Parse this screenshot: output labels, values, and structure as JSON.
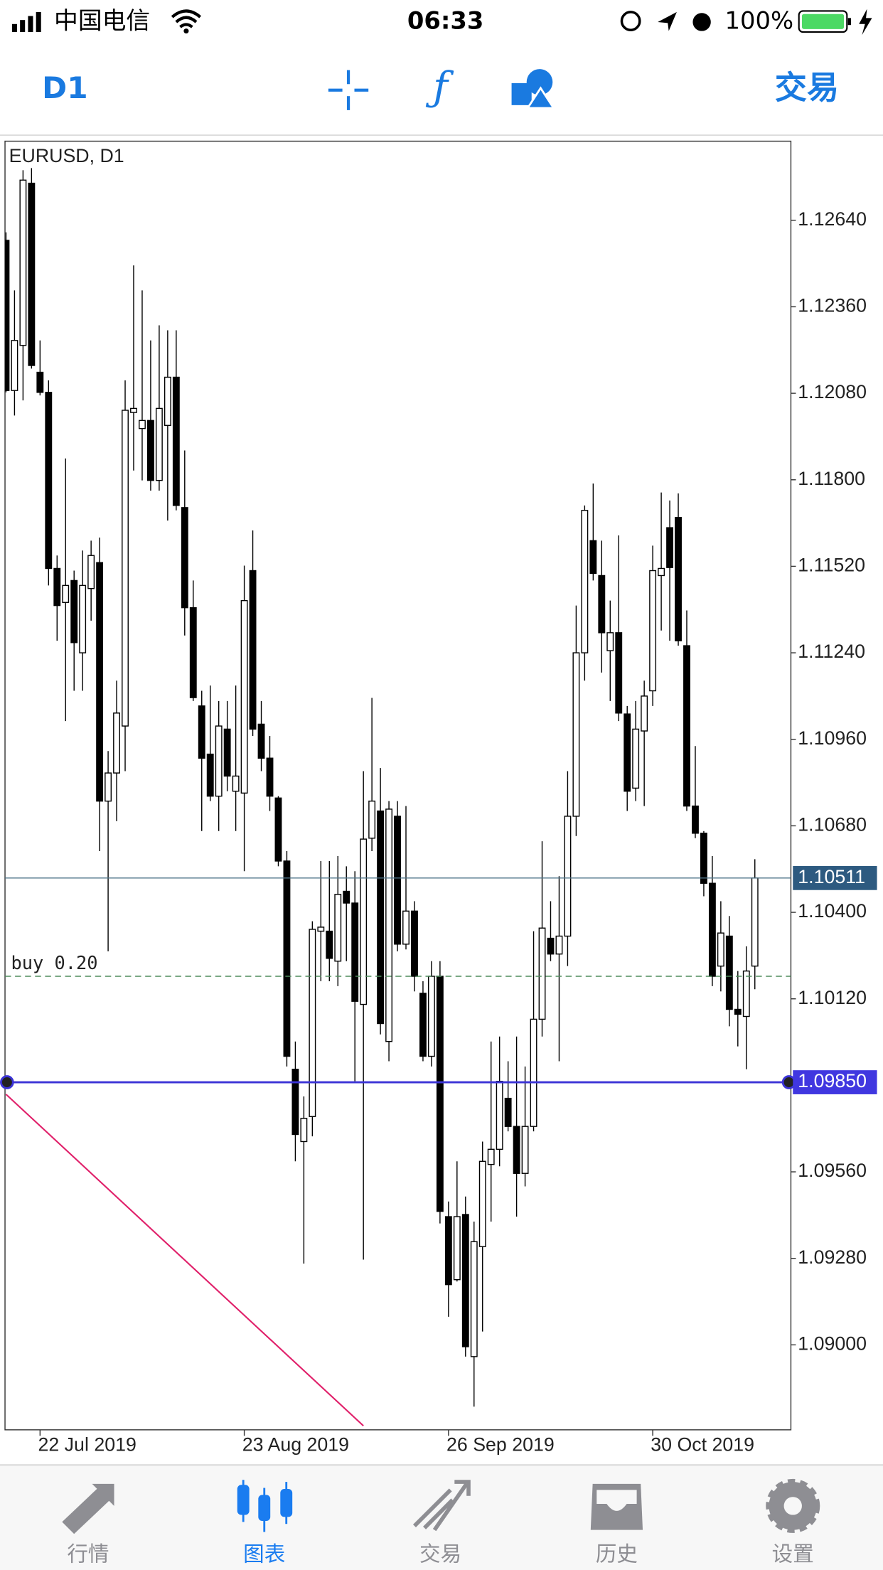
{
  "status_bar": {
    "carrier": "中国电信",
    "time": "06:33",
    "battery": "100%"
  },
  "toolbar": {
    "timeframe": "D1",
    "trade": "交易"
  },
  "chart_data": {
    "type": "candlestick",
    "title": "EURUSD, D1",
    "categories": [
      null,
      null,
      null,
      null,
      "22 Jul 2019",
      null,
      null,
      null,
      null,
      null,
      null,
      null,
      null,
      null,
      null,
      null,
      null,
      null,
      null,
      null,
      null,
      null,
      null,
      null,
      null,
      null,
      null,
      null,
      "23 Aug 2019",
      null,
      null,
      null,
      null,
      null,
      null,
      null,
      null,
      null,
      null,
      null,
      null,
      null,
      null,
      null,
      null,
      null,
      null,
      null,
      null,
      null,
      null,
      null,
      "26 Sep 2019",
      null,
      null,
      null,
      null,
      null,
      null,
      null,
      null,
      null,
      null,
      null,
      null,
      null,
      null,
      null,
      null,
      null,
      null,
      null,
      null,
      null,
      null,
      null,
      "30 Oct 2019",
      null,
      null,
      null,
      null,
      null,
      null,
      null,
      null,
      null,
      null,
      null,
      null
    ],
    "open": [
      1.12575,
      1.12089,
      1.12235,
      1.1276,
      1.12148,
      1.12083,
      1.11513,
      1.11403,
      1.11474,
      1.1124,
      1.11448,
      1.11532,
      1.1076,
      1.10851,
      1.11003,
      1.12018,
      1.11966,
      1.11992,
      1.11798,
      1.11976,
      1.12132,
      1.1171,
      1.11386,
      1.11068,
      1.10912,
      1.10776,
      1.10993,
      1.10792,
      1.10786,
      1.11506,
      1.11009,
      1.10899,
      1.1077,
      1.10566,
      1.09892,
      1.09658,
      1.09739,
      1.10339,
      1.10339,
      1.10242,
      1.10468,
      1.1043,
      1.10102,
      1.1064,
      1.10728,
      1.09982,
      1.10711,
      1.10297,
      1.10404,
      1.10138,
      1.09934,
      1.10193,
      1.09415,
      1.09211,
      1.09422,
      1.08962,
      1.09318,
      1.09584,
      1.09633,
      1.09798,
      1.09707,
      1.09555,
      1.09707,
      1.10054,
      1.10316,
      1.10265,
      1.10323,
      1.10711,
      1.1124,
      1.11603,
      1.1149,
      1.11247,
      1.11305,
      1.11042,
      1.10802,
      1.10987,
      1.11117,
      1.1149,
      1.11645,
      1.11678,
      1.11263,
      1.10744,
      1.10656,
      1.10494,
      1.10226,
      1.10323,
      1.10086,
      1.10063,
      1.10226
    ],
    "high": [
      1.12601,
      1.12413,
      1.12802,
      1.12809,
      1.12251,
      1.12122,
      1.11555,
      1.11869,
      1.11506,
      1.11571,
      1.11603,
      1.11613,
      1.10922,
      1.1115,
      1.12122,
      1.12494,
      1.12413,
      1.12251,
      1.123,
      1.12284,
      1.12284,
      1.11895,
      1.11474,
      1.11117,
      1.11134,
      1.11084,
      1.11084,
      1.11134,
      1.11522,
      1.11636,
      1.11084,
      1.10971,
      1.10776,
      1.10598,
      1.09982,
      1.09804,
      1.10371,
      1.10566,
      1.10566,
      1.10582,
      1.10549,
      1.10533,
      1.10857,
      1.11094,
      1.10867,
      1.1076,
      1.1076,
      1.10744,
      1.10436,
      1.10177,
      1.10242,
      1.10242,
      1.09464,
      1.09594,
      1.0948,
      1.09399,
      1.09658,
      1.09982,
      1.09998,
      1.09918,
      1.09998,
      1.09901,
      1.10339,
      1.1063,
      1.10436,
      1.10517,
      1.10857,
      1.11393,
      1.11717,
      1.11788,
      1.11603,
      1.11409,
      1.1162,
      1.11068,
      1.11084,
      1.1115,
      1.11587,
      1.11759,
      1.11733,
      1.11756,
      1.11377,
      1.10938,
      1.10663,
      1.10582,
      1.10436,
      1.10388,
      1.1021,
      1.1029,
      1.10572
    ],
    "low": [
      1.12083,
      1.12008,
      1.12057,
      1.1216,
      1.12073,
      1.11458,
      1.11279,
      1.11019,
      1.11117,
      1.11117,
      1.11344,
      1.10598,
      1.10274,
      1.10695,
      1.10857,
      1.1183,
      1.11798,
      1.11765,
      1.11765,
      1.11668,
      1.11701,
      1.11296,
      1.11084,
      1.10663,
      1.1076,
      1.10663,
      1.10792,
      1.10663,
      1.10533,
      1.10971,
      1.10857,
      1.10728,
      1.10549,
      1.09901,
      1.09594,
      1.09263,
      1.09675,
      1.10177,
      1.10177,
      1.10161,
      1.10242,
      1.09853,
      1.09276,
      1.10598,
      1.10005,
      1.09918,
      1.10274,
      1.1028,
      1.10144,
      1.09918,
      1.09901,
      1.09393,
      1.09091,
      1.09205,
      1.08962,
      1.088,
      1.09043,
      1.09399,
      1.09578,
      1.09691,
      1.09415,
      1.09513,
      1.09691,
      1.09998,
      1.10242,
      1.09918,
      1.10226,
      1.10647,
      1.1115,
      1.11474,
      1.11176,
      1.11084,
      1.11019,
      1.10728,
      1.1076,
      1.10744,
      1.11068,
      1.11312,
      1.11279,
      1.11263,
      1.10728,
      1.1064,
      1.10452,
      1.10161,
      1.10144,
      1.10031,
      1.09966,
      1.09892,
      1.10151
    ],
    "close": [
      1.12089,
      1.12251,
      1.1277,
      1.1217,
      1.12083,
      1.11513,
      1.11393,
      1.11458,
      1.11273,
      1.11458,
      1.11555,
      1.1076,
      1.10851,
      1.11045,
      1.12025,
      1.12031,
      1.11992,
      1.11798,
      1.12031,
      1.12132,
      1.11717,
      1.11386,
      1.11095,
      1.10899,
      1.10776,
      1.11003,
      1.10841,
      1.10841,
      1.11409,
      1.10993,
      1.10899,
      1.10776,
      1.10566,
      1.09934,
      1.09681,
      1.09733,
      1.10345,
      1.10352,
      1.10251,
      1.10458,
      1.1043,
      1.10112,
      1.10637,
      1.1076,
      1.1004,
      1.10734,
      1.10297,
      1.10404,
      1.10193,
      1.09934,
      1.10193,
      1.09432,
      1.09195,
      1.09415,
      1.08994,
      1.09334,
      1.09594,
      1.09633,
      1.09853,
      1.09707,
      1.09555,
      1.09707,
      1.10054,
      1.10349,
      1.10265,
      1.10323,
      1.10711,
      1.1124,
      1.11701,
      1.11497,
      1.11305,
      1.11305,
      1.11045,
      1.10792,
      1.10993,
      1.111,
      1.11506,
      1.11513,
      1.11516,
      1.11279,
      1.10744,
      1.10656,
      1.10494,
      1.10193,
      1.10333,
      1.10086,
      1.1007,
      1.1021,
      1.10511
    ],
    "up_color": "#ffffff",
    "down_color": "#000000",
    "ylim": [
      1.08725,
      1.12896
    ],
    "yticks": [
      {
        "value": 1.1264,
        "label": "1.12640"
      },
      {
        "value": 1.1236,
        "label": "1.12360"
      },
      {
        "value": 1.1208,
        "label": "1.12080"
      },
      {
        "value": 1.118,
        "label": "1.11800"
      },
      {
        "value": 1.1152,
        "label": "1.11520"
      },
      {
        "value": 1.1124,
        "label": "1.11240"
      },
      {
        "value": 1.1096,
        "label": "1.10960"
      },
      {
        "value": 1.1068,
        "label": "1.10680"
      },
      {
        "value": 1.104,
        "label": "1.10400"
      },
      {
        "value": 1.1012,
        "label": "1.10120"
      },
      {
        "value": 1.0956,
        "label": "1.09560"
      },
      {
        "value": 1.0928,
        "label": "1.09280"
      },
      {
        "value": 1.09,
        "label": "1.09000"
      }
    ],
    "grid": false,
    "price_lines": [
      {
        "value": 1.10511,
        "color": "#4f7489",
        "box_color": "#2d5a80"
      },
      {
        "value": 1.0985,
        "label": "1.09850",
        "color": "#3b33d6",
        "box_color": "#4037e0"
      }
    ],
    "order_line": {
      "label": "buy 0.20",
      "value": 1.10193,
      "color": "#4e8c5c"
    },
    "trendline": {
      "color": "#e0206a",
      "x": [
        0,
        42
      ],
      "y": [
        1.09811,
        1.08738
      ]
    }
  },
  "tab_bar": {
    "tabs": [
      "行情",
      "图表",
      "交易",
      "历史",
      "设置"
    ]
  }
}
